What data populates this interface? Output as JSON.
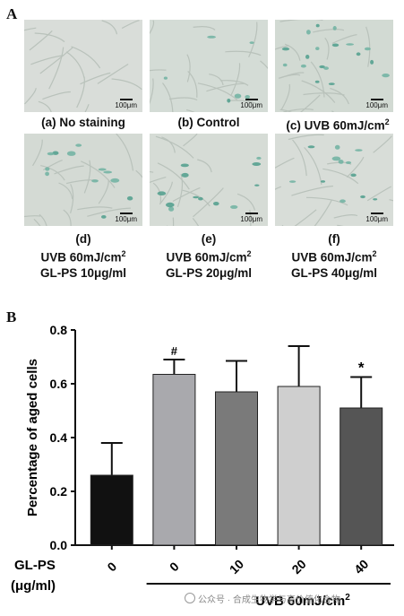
{
  "panel_a_label": "A",
  "panel_b_label": "B",
  "scale_text": "100μm",
  "captions": [
    {
      "line1": "(a) No staining",
      "line2": ""
    },
    {
      "line1": "(b) Control",
      "line2": ""
    },
    {
      "line1": "(c) UVB 60mJ/cm",
      "sup": "2",
      "line2": ""
    },
    {
      "line1": "(d)",
      "line2": "UVB 60mJ/cm",
      "sup": "2",
      "line3": "GL-PS 10μg/ml"
    },
    {
      "line1": "(e)",
      "line2": "UVB 60mJ/cm",
      "sup": "2",
      "line3": "GL-PS 20μg/ml"
    },
    {
      "line1": "(f)",
      "line2": "UVB 60mJ/cm",
      "sup": "2",
      "line3": "GL-PS 40μg/ml"
    }
  ],
  "chart_data": {
    "type": "bar",
    "ylabel": "Percentage of aged cells",
    "ylim": [
      0,
      0.8
    ],
    "yticks": [
      "0.0",
      "0.2",
      "0.4",
      "0.6",
      "0.8"
    ],
    "x_row_label_1": "GL-PS",
    "x_row_label_2": "(μg/ml)",
    "categories": [
      "0",
      "0",
      "10",
      "20",
      "40"
    ],
    "values": [
      0.26,
      0.635,
      0.57,
      0.59,
      0.51
    ],
    "errors": [
      0.12,
      0.055,
      0.115,
      0.15,
      0.115
    ],
    "annotations": [
      "",
      "#",
      "",
      "",
      "*"
    ],
    "bar_colors": [
      "#111111",
      "#a9a9ad",
      "#7a7a7a",
      "#cfcfcf",
      "#555555"
    ],
    "group_label": "UVB 60mJ/cm",
    "group_label_sup": "2"
  },
  "watermark": "公众号 · 合成生物学与高价值化合物"
}
